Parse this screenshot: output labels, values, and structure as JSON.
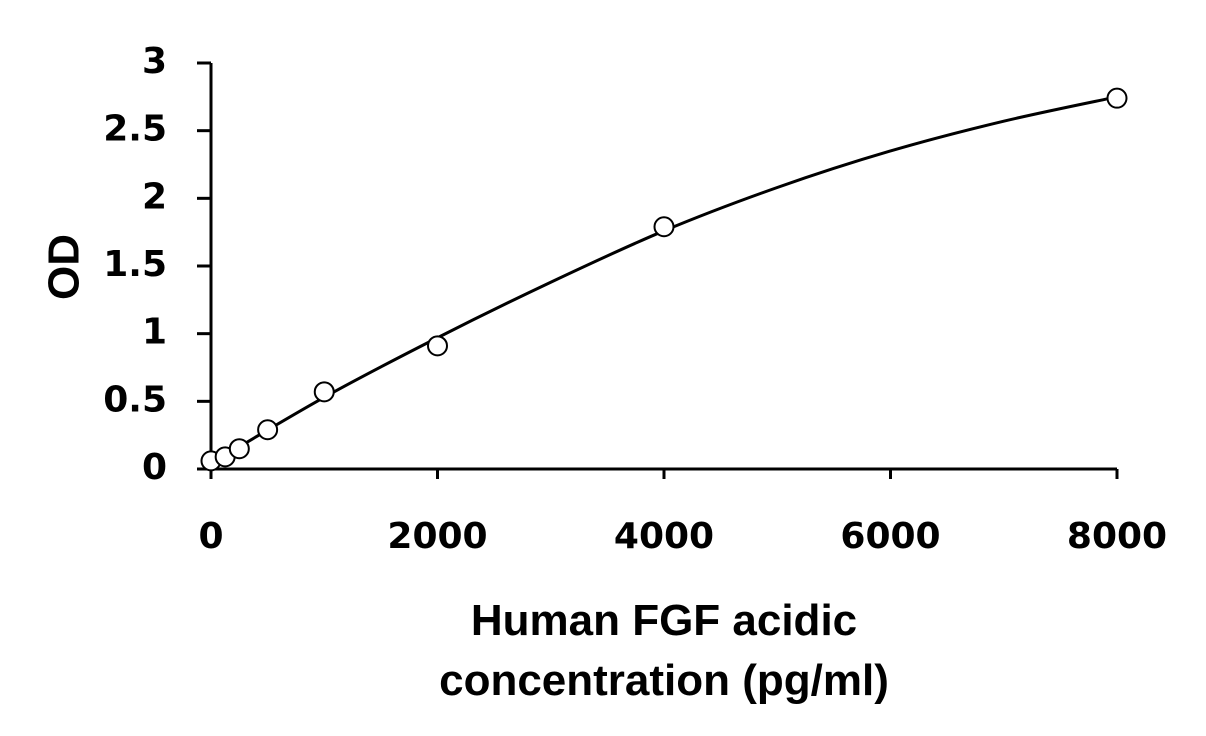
{
  "chart_data": {
    "type": "scatter",
    "title": "",
    "xlabel_lines": [
      "Human FGF acidic",
      "concentration (pg/ml)"
    ],
    "ylabel": "OD",
    "xlim": [
      0,
      8000
    ],
    "ylim": [
      0,
      3
    ],
    "x_ticks": [
      0,
      2000,
      4000,
      6000,
      8000
    ],
    "x_tick_labels": [
      "0",
      "2000",
      "4000",
      "6000",
      "8000"
    ],
    "y_ticks": [
      0,
      0.5,
      1,
      1.5,
      2,
      2.5,
      3
    ],
    "y_tick_labels": [
      "0",
      "0.5",
      "1",
      "1.5",
      "2",
      "2.5",
      "3"
    ],
    "grid": false,
    "legend": "none",
    "marker": "open-circle",
    "series": [
      {
        "points": [
          {
            "x": 0,
            "y": 0.06
          },
          {
            "x": 125,
            "y": 0.09
          },
          {
            "x": 250,
            "y": 0.15
          },
          {
            "x": 500,
            "y": 0.29
          },
          {
            "x": 1000,
            "y": 0.57
          },
          {
            "x": 2000,
            "y": 0.91
          },
          {
            "x": 4000,
            "y": 1.79
          },
          {
            "x": 8000,
            "y": 2.74
          }
        ]
      }
    ],
    "fit_curve": {
      "type": "smooth",
      "points": [
        {
          "x": 0,
          "y": 0.04
        },
        {
          "x": 1000,
          "y": 0.53
        },
        {
          "x": 2000,
          "y": 0.97
        },
        {
          "x": 3000,
          "y": 1.38
        },
        {
          "x": 4000,
          "y": 1.76
        },
        {
          "x": 5000,
          "y": 2.08
        },
        {
          "x": 6000,
          "y": 2.35
        },
        {
          "x": 7000,
          "y": 2.57
        },
        {
          "x": 8000,
          "y": 2.75
        }
      ]
    }
  }
}
